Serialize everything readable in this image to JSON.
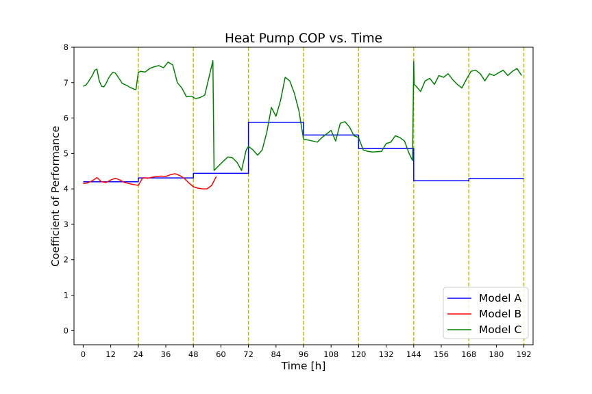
{
  "chart_data": {
    "type": "line",
    "title": "Heat Pump COP vs. Time",
    "xlabel": "Time [h]",
    "ylabel": "Coefficient of Performance",
    "xlim": [
      -4,
      196
    ],
    "ylim": [
      -0.4,
      8
    ],
    "xticks": [
      0,
      12,
      24,
      36,
      48,
      60,
      72,
      84,
      96,
      108,
      120,
      132,
      144,
      156,
      168,
      180,
      192
    ],
    "yticks": [
      0,
      1,
      2,
      3,
      4,
      5,
      6,
      7,
      8
    ],
    "vlines": [
      24,
      48,
      72,
      96,
      120,
      144,
      168,
      192
    ],
    "vline_color": "#bfbf00",
    "legend_position": "lower-right",
    "grid": false,
    "series": [
      {
        "name": "Model A",
        "color": "#0000ff",
        "x": [
          0,
          24,
          24,
          48,
          48,
          72,
          72,
          96,
          96,
          120,
          120,
          144,
          144,
          168,
          168,
          192
        ],
        "y": [
          4.2,
          4.2,
          4.31,
          4.31,
          4.44,
          4.44,
          5.88,
          5.88,
          5.52,
          5.52,
          5.14,
          5.14,
          4.23,
          4.23,
          4.29,
          4.29
        ]
      },
      {
        "name": "Model B",
        "color": "#ff0000",
        "x": [
          0,
          2,
          4,
          6,
          8,
          10,
          12,
          14,
          16,
          18,
          20,
          22,
          24,
          26,
          28,
          30,
          32,
          34,
          36,
          38,
          40,
          42,
          44,
          46,
          48,
          50,
          52,
          54,
          56,
          58
        ],
        "y": [
          4.15,
          4.17,
          4.23,
          4.32,
          4.2,
          4.18,
          4.25,
          4.3,
          4.25,
          4.18,
          4.15,
          4.12,
          4.1,
          4.32,
          4.3,
          4.33,
          4.35,
          4.36,
          4.35,
          4.4,
          4.43,
          4.38,
          4.3,
          4.17,
          4.06,
          4.02,
          4.0,
          4.0,
          4.1,
          4.35
        ]
      },
      {
        "name": "Model C",
        "color": "#008000",
        "x": [
          0,
          1,
          2,
          3,
          4,
          5,
          6,
          7,
          8,
          9,
          10,
          11,
          12,
          13,
          14,
          15,
          16,
          17,
          18,
          19,
          20,
          21,
          22,
          23,
          24,
          25,
          27,
          29,
          31,
          33,
          35,
          37,
          39,
          41,
          43,
          45,
          47,
          49,
          51,
          53,
          55,
          56.5,
          57,
          57,
          59,
          61,
          63,
          65,
          67,
          69,
          71,
          72,
          74,
          76,
          78,
          80,
          82,
          84,
          86,
          88,
          90,
          92,
          94,
          96,
          98,
          100,
          102,
          104,
          106,
          108,
          110,
          112,
          114,
          116,
          118,
          120,
          122,
          124,
          126,
          128,
          130,
          132,
          134,
          136,
          138,
          140,
          142,
          143.5,
          144,
          144.2,
          145,
          147,
          149,
          151,
          153,
          155,
          157,
          159,
          161,
          163,
          165,
          167,
          169,
          171,
          173,
          175,
          177,
          179,
          181,
          183,
          185,
          187,
          189,
          191
        ],
        "y": [
          6.9,
          6.92,
          7.0,
          7.1,
          7.2,
          7.35,
          7.38,
          7.05,
          6.9,
          6.88,
          6.98,
          7.12,
          7.22,
          7.29,
          7.27,
          7.18,
          7.08,
          6.98,
          6.95,
          6.92,
          6.88,
          6.85,
          6.82,
          6.8,
          7.28,
          7.32,
          7.3,
          7.4,
          7.45,
          7.48,
          7.42,
          7.58,
          7.5,
          7.0,
          6.85,
          6.6,
          6.62,
          6.55,
          6.58,
          6.65,
          7.2,
          7.62,
          4.55,
          4.52,
          4.65,
          4.78,
          4.9,
          4.88,
          4.75,
          4.52,
          5.1,
          5.2,
          5.1,
          4.95,
          5.1,
          5.6,
          6.3,
          6.05,
          6.5,
          7.15,
          7.05,
          6.7,
          6.2,
          5.4,
          5.38,
          5.35,
          5.32,
          5.45,
          5.55,
          5.65,
          5.35,
          5.85,
          5.9,
          5.75,
          5.5,
          5.45,
          5.1,
          5.06,
          5.04,
          5.05,
          5.06,
          5.28,
          5.32,
          5.5,
          5.45,
          5.35,
          5.0,
          4.8,
          7.6,
          6.95,
          6.9,
          6.75,
          7.05,
          7.12,
          6.95,
          7.2,
          7.15,
          7.25,
          7.08,
          6.95,
          6.85,
          7.1,
          7.32,
          7.35,
          7.25,
          7.05,
          7.25,
          7.2,
          7.28,
          7.35,
          7.2,
          7.32,
          7.4,
          7.2
        ]
      }
    ]
  }
}
